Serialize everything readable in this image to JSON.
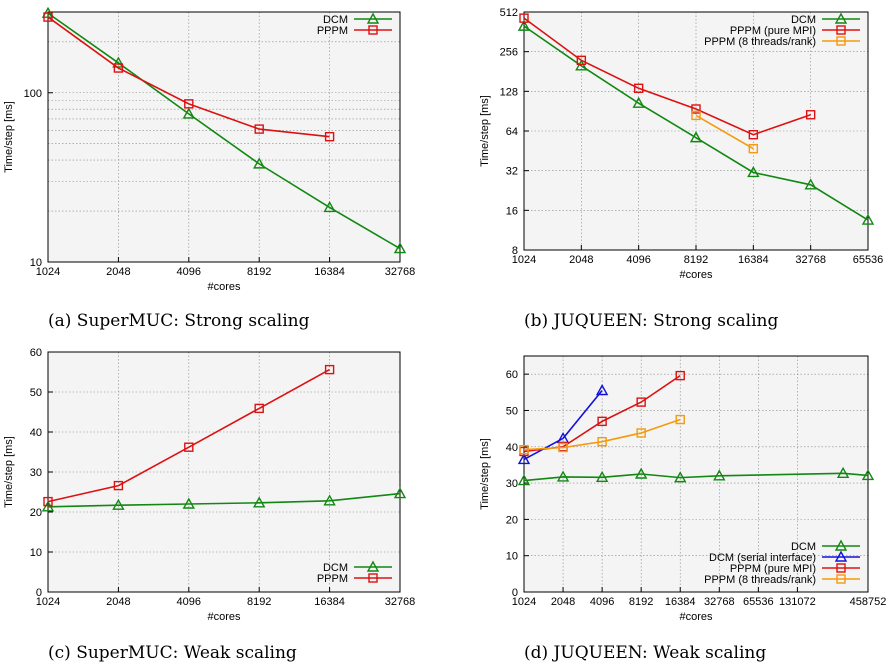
{
  "colors": {
    "DCM": "#118811",
    "PPPM": "#dd1111",
    "PPPM_threads": "#f59a0d",
    "DCM_serial": "#1111dd"
  },
  "chart_data": [
    {
      "type": "line",
      "caption": "(a) SuperMUC: Strong scaling",
      "xlabel": "#cores",
      "ylabel": "Time/step [ms]",
      "xscale": "log2",
      "yscale": "log10",
      "xlim": [
        1024,
        32768
      ],
      "ylim": [
        10,
        300
      ],
      "xticks": [
        1024,
        2048,
        4096,
        8192,
        16384,
        32768
      ],
      "xtick_labels": [
        "1024",
        "2048",
        "4096",
        "8192",
        "16384",
        "32768"
      ],
      "yticks": [
        10,
        100
      ],
      "ytick_labels": [
        "10",
        "100"
      ],
      "grid": true,
      "legend": "top-right",
      "series": [
        {
          "name": "DCM",
          "color": "#118811",
          "marker": "triangle",
          "x": [
            1024,
            2048,
            4096,
            8192,
            16384,
            32768
          ],
          "y": [
            295,
            150,
            75,
            38,
            21,
            12
          ]
        },
        {
          "name": "PPPM",
          "color": "#dd1111",
          "marker": "square",
          "x": [
            1024,
            2048,
            4096,
            8192,
            16384
          ],
          "y": [
            280,
            140,
            86,
            61,
            55
          ]
        }
      ]
    },
    {
      "type": "line",
      "caption": "(b) JUQUEEN: Strong scaling",
      "xlabel": "#cores",
      "ylabel": "Time/step [ms]",
      "xscale": "log2",
      "yscale": "log2",
      "xlim": [
        1024,
        65536
      ],
      "ylim": [
        8,
        512
      ],
      "xticks": [
        1024,
        2048,
        4096,
        8192,
        16384,
        32768,
        65536
      ],
      "xtick_labels": [
        "1024",
        "2048",
        "4096",
        "8192",
        "16384",
        "32768",
        "65536"
      ],
      "yticks": [
        8,
        16,
        32,
        64,
        128,
        256,
        512
      ],
      "ytick_labels": [
        "8",
        "16",
        "32",
        "64",
        "128",
        "256",
        "512"
      ],
      "grid": true,
      "legend": "top-right",
      "series": [
        {
          "name": "DCM",
          "color": "#118811",
          "marker": "triangle",
          "x": [
            1024,
            2048,
            4096,
            8192,
            16384,
            32768,
            65536
          ],
          "y": [
            400,
            200,
            104,
            57,
            31,
            25,
            13.5
          ]
        },
        {
          "name": "PPPM (pure MPI)",
          "color": "#dd1111",
          "marker": "square",
          "x": [
            1024,
            2048,
            4096,
            8192,
            16384,
            32768
          ],
          "y": [
            460,
            220,
            135,
            94,
            60,
            85
          ]
        },
        {
          "name": "PPPM (8 threads/rank)",
          "color": "#f59a0d",
          "marker": "square",
          "x": [
            8192,
            16384
          ],
          "y": [
            84,
            47
          ]
        }
      ]
    },
    {
      "type": "line",
      "caption": "(c) SuperMUC: Weak scaling",
      "xlabel": "#cores",
      "ylabel": "Time/step [ms]",
      "xscale": "log2",
      "yscale": "linear",
      "xlim": [
        1024,
        32768
      ],
      "ylim": [
        0,
        60
      ],
      "xticks": [
        1024,
        2048,
        4096,
        8192,
        16384,
        32768
      ],
      "xtick_labels": [
        "1024",
        "2048",
        "4096",
        "8192",
        "16384",
        "32768"
      ],
      "yticks": [
        0,
        10,
        20,
        30,
        40,
        50,
        60
      ],
      "ytick_labels": [
        "0",
        "10",
        "20",
        "30",
        "40",
        "50",
        "60"
      ],
      "grid": true,
      "legend": "bottom-right",
      "series": [
        {
          "name": "DCM",
          "color": "#118811",
          "marker": "triangle",
          "x": [
            1024,
            2048,
            4096,
            8192,
            16384,
            32768
          ],
          "y": [
            21.3,
            21.7,
            22.0,
            22.3,
            22.8,
            24.6
          ]
        },
        {
          "name": "PPPM",
          "color": "#dd1111",
          "marker": "square",
          "x": [
            1024,
            2048,
            4096,
            8192,
            16384
          ],
          "y": [
            22.6,
            26.6,
            36.2,
            45.9,
            55.6
          ]
        }
      ]
    },
    {
      "type": "line",
      "caption": "(d) JUQUEEN: Weak scaling",
      "xlabel": "#cores",
      "ylabel": "Time/step [ms]",
      "xscale": "log2",
      "yscale": "linear",
      "xlim": [
        1024,
        458752
      ],
      "ylim": [
        0,
        65
      ],
      "xticks": [
        1024,
        2048,
        4096,
        8192,
        16384,
        32768,
        65536,
        131072,
        458752
      ],
      "xtick_labels": [
        "1024",
        "2048",
        "4096",
        "8192",
        "16384",
        "32768",
        "65536",
        "131072",
        "458752"
      ],
      "yticks": [
        0,
        10,
        20,
        30,
        40,
        50,
        60
      ],
      "ytick_labels": [
        "0",
        "10",
        "20",
        "30",
        "40",
        "50",
        "60"
      ],
      "grid": true,
      "legend": "bottom-right",
      "series": [
        {
          "name": "DCM",
          "color": "#118811",
          "marker": "triangle",
          "x": [
            1024,
            2048,
            4096,
            8192,
            16384,
            32768,
            294912,
            458752
          ],
          "y": [
            30.7,
            31.7,
            31.6,
            32.5,
            31.5,
            32.0,
            32.7,
            32.1
          ]
        },
        {
          "name": "DCM (serial interface)",
          "color": "#1111dd",
          "marker": "triangle",
          "x": [
            1024,
            2048,
            4096
          ],
          "y": [
            36.5,
            42.3,
            55.5
          ]
        },
        {
          "name": "PPPM (pure MPI)",
          "color": "#dd1111",
          "marker": "square",
          "x": [
            1024,
            2048,
            4096,
            8192,
            16384
          ],
          "y": [
            38.7,
            40.0,
            47.0,
            52.3,
            59.6
          ]
        },
        {
          "name": "PPPM (8 threads/rank)",
          "color": "#f59a0d",
          "marker": "square",
          "x": [
            1024,
            2048,
            4096,
            8192,
            16384
          ],
          "y": [
            39.2,
            39.8,
            41.4,
            43.8,
            47.5
          ]
        }
      ]
    }
  ]
}
